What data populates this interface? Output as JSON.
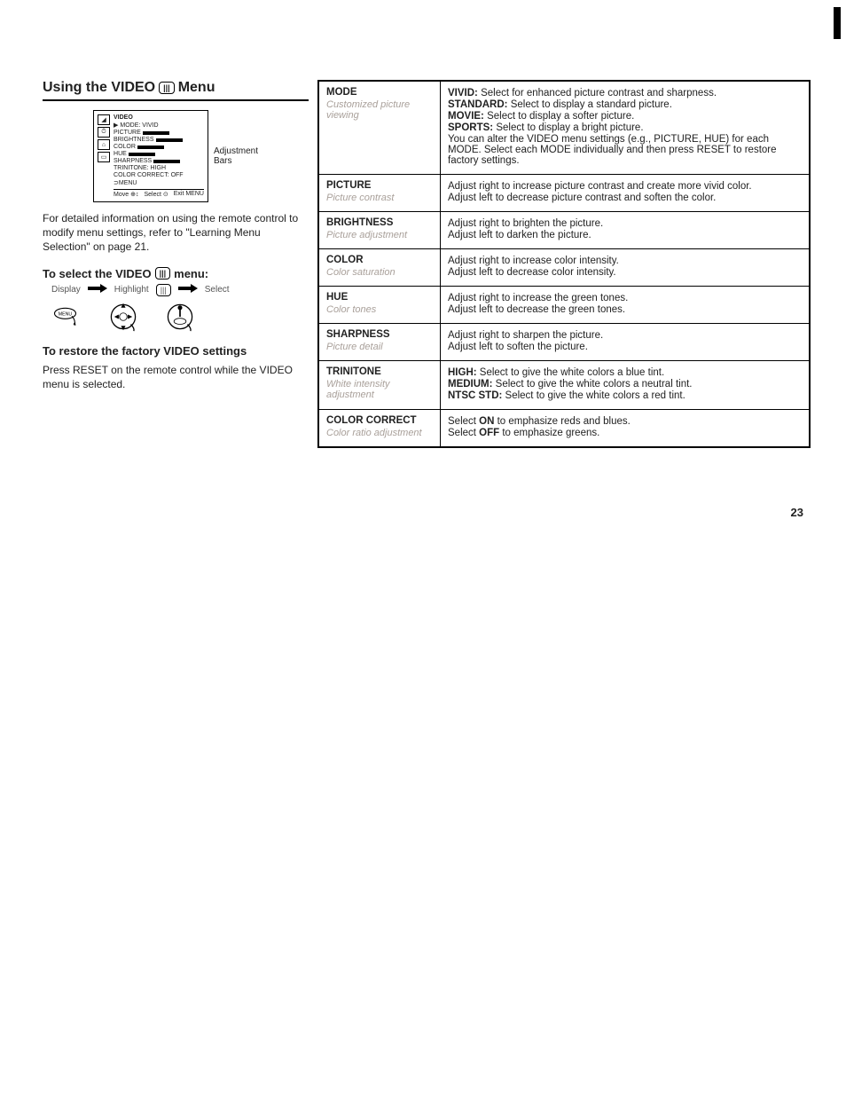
{
  "page_number": "23",
  "heading": {
    "prefix": "Using the VIDEO",
    "suffix": "Menu",
    "icon_label": "|||"
  },
  "osd": {
    "title": "VIDEO",
    "rows": [
      "MODE: VIVID",
      "PICTURE",
      "BRIGHTNESS",
      "COLOR",
      "HUE",
      "SHARPNESS",
      "TRINITONE: HIGH",
      "COLOR CORRECT: OFF",
      "⊃MENU"
    ],
    "bottom": [
      "Move ⊕↕",
      "Select ⊙",
      "Exit  MENU"
    ],
    "side_label_1": "Adjustment",
    "side_label_2": "Bars"
  },
  "intro_para": "For detailed information on using the remote control to modify menu settings, refer to \"Learning Menu Selection\" on page 21.",
  "subhead_select": {
    "prefix": "To select the VIDEO",
    "suffix": "menu:",
    "icon_label": "|||"
  },
  "steps": {
    "s1": "Display",
    "s2": "Highlight",
    "s2_icon": "|||",
    "s3": "Select"
  },
  "subhead_restore": "To restore the factory VIDEO settings",
  "restore_para": "Press RESET on the remote control while the VIDEO menu is selected.",
  "settings": [
    {
      "name": "MODE",
      "sub": "Customized picture viewing",
      "desc": [
        {
          "b": "VIVID:",
          "t": " Select for enhanced picture contrast and sharpness."
        },
        {
          "b": "STANDARD:",
          "t": " Select to display a standard picture."
        },
        {
          "b": "MOVIE:",
          "t": " Select to display a softer picture."
        },
        {
          "b": "SPORTS:",
          "t": " Select to display a bright picture."
        },
        {
          "b": "",
          "t": "You can alter the VIDEO menu settings (e.g., PICTURE, HUE) for each MODE. Select each MODE individually and then press RESET to restore factory settings."
        }
      ]
    },
    {
      "name": "PICTURE",
      "sub": "Picture contrast",
      "desc": [
        {
          "b": "",
          "t": "Adjust right to increase picture contrast and create more vivid color."
        },
        {
          "b": "",
          "t": "Adjust left to decrease picture contrast and soften the color."
        }
      ]
    },
    {
      "name": "BRIGHTNESS",
      "sub": "Picture adjustment",
      "desc": [
        {
          "b": "",
          "t": "Adjust right to brighten the picture."
        },
        {
          "b": "",
          "t": "Adjust left to darken the picture."
        }
      ]
    },
    {
      "name": "COLOR",
      "sub": "Color saturation",
      "desc": [
        {
          "b": "",
          "t": "Adjust right to increase color intensity."
        },
        {
          "b": "",
          "t": "Adjust left to decrease color intensity."
        }
      ]
    },
    {
      "name": "HUE",
      "sub": "Color tones",
      "desc": [
        {
          "b": "",
          "t": "Adjust right to increase the green tones."
        },
        {
          "b": "",
          "t": "Adjust left to decrease the green tones."
        }
      ]
    },
    {
      "name": "SHARPNESS",
      "sub": "Picture detail",
      "desc": [
        {
          "b": "",
          "t": "Adjust right to sharpen the picture."
        },
        {
          "b": "",
          "t": "Adjust left to soften the picture."
        }
      ]
    },
    {
      "name": "TRINITONE",
      "sub": "White intensity adjustment",
      "desc": [
        {
          "b": "HIGH:",
          "t": " Select to give the white colors a blue tint."
        },
        {
          "b": "MEDIUM:",
          "t": " Select to give the white colors a neutral tint."
        },
        {
          "b": "NTSC STD:",
          "t": " Select to give the white colors a red tint."
        }
      ]
    },
    {
      "name": "COLOR CORRECT",
      "sub": "Color ratio adjustment",
      "desc": [
        {
          "b": "",
          "t": "Select ON to emphasize reds and blues.",
          "bold_inline": "ON"
        },
        {
          "b": "",
          "t": "Select OFF to emphasize greens.",
          "bold_inline": "OFF"
        }
      ]
    }
  ]
}
